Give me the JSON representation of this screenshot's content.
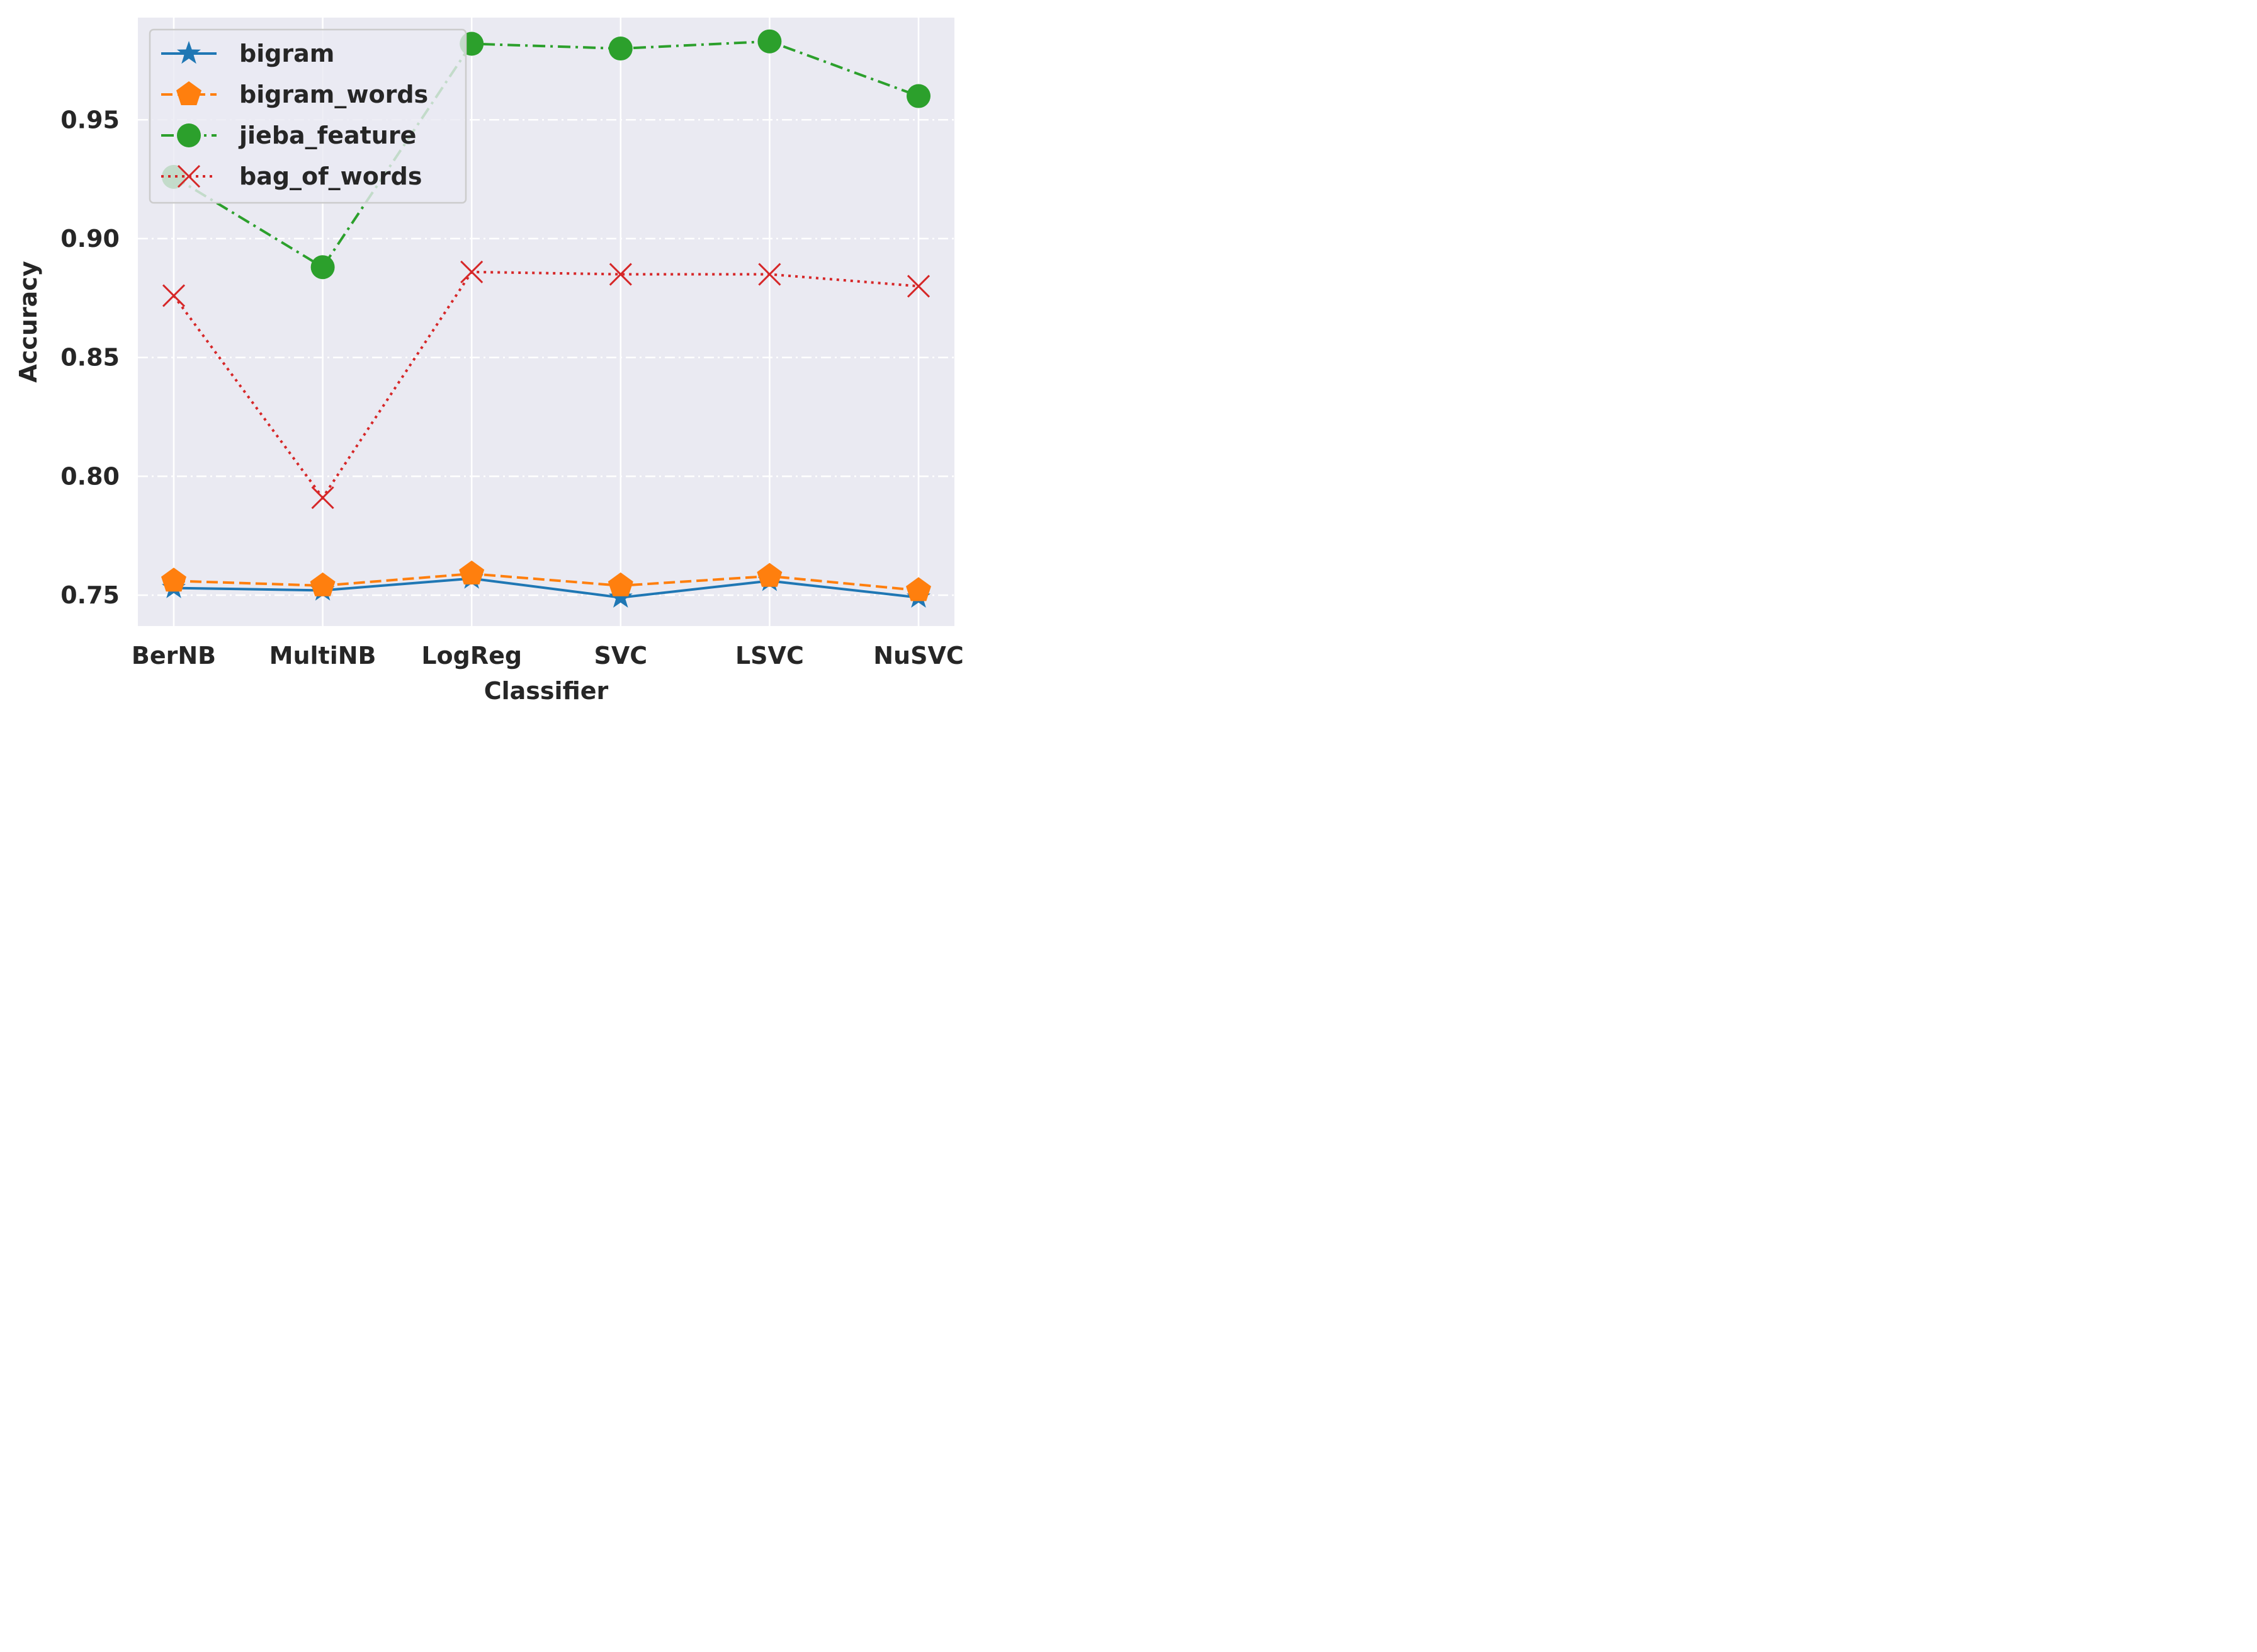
{
  "chart_data": {
    "type": "line",
    "xlabel": "Classifier",
    "ylabel": "Accuracy",
    "categories": [
      "BerNB",
      "MultiNB",
      "LogReg",
      "SVC",
      "LSVC",
      "NuSVC"
    ],
    "ylim": [
      0.737,
      0.993
    ],
    "yticks": [
      0.75,
      0.8,
      0.85,
      0.9,
      0.95
    ],
    "ytick_labels": [
      "0.75",
      "0.80",
      "0.85",
      "0.90",
      "0.95"
    ],
    "grid": true,
    "legend_position": "top-left",
    "background": "#eaeaf2",
    "series": [
      {
        "name": "bigram",
        "color": "#1f77b4",
        "marker": "star",
        "linestyle": "solid",
        "values": [
          0.753,
          0.752,
          0.757,
          0.749,
          0.756,
          0.749
        ]
      },
      {
        "name": "bigram_words",
        "color": "#ff7f0e",
        "marker": "pentagon",
        "linestyle": "dashed",
        "values": [
          0.756,
          0.754,
          0.759,
          0.754,
          0.758,
          0.752
        ]
      },
      {
        "name": "jieba_feature",
        "color": "#2ca02c",
        "marker": "circle",
        "linestyle": "dashdot",
        "values": [
          0.926,
          0.888,
          0.982,
          0.98,
          0.983,
          0.96
        ]
      },
      {
        "name": "bag_of_words",
        "color": "#d62728",
        "marker": "x",
        "linestyle": "dotted",
        "values": [
          0.876,
          0.791,
          0.886,
          0.885,
          0.885,
          0.88
        ]
      }
    ]
  }
}
